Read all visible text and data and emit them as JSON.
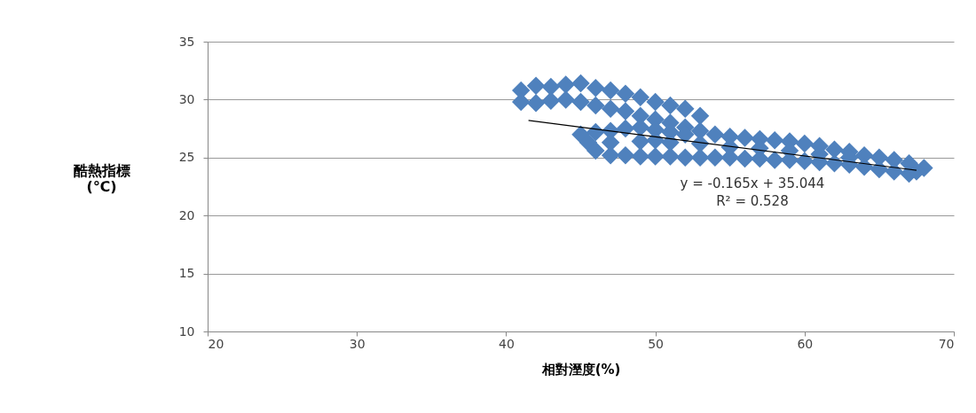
{
  "chart_data": {
    "type": "scatter",
    "xlabel": "相對溼度(%)",
    "ylabel": "酷熱指標\n(℃)",
    "xlim": [
      20,
      70
    ],
    "xticks": [
      20,
      30,
      40,
      50,
      60,
      70
    ],
    "ylim": [
      10,
      35
    ],
    "yticks": [
      10,
      15,
      20,
      25,
      30,
      35
    ],
    "grid": "y",
    "series": [
      {
        "color": "#4f81bd",
        "marker": "diamond",
        "x": [
          41,
          42,
          43,
          44,
          45,
          46,
          47,
          48,
          49,
          50,
          51,
          52,
          53,
          41,
          42,
          43,
          44,
          45,
          46,
          47,
          48,
          49,
          50,
          51,
          52,
          52,
          53,
          54,
          55,
          56,
          57,
          58,
          59,
          60,
          61,
          62,
          63,
          64,
          65,
          66,
          67,
          68,
          45,
          46,
          47,
          48,
          49,
          50,
          51,
          45.5,
          46,
          47,
          48,
          49,
          50,
          51,
          52,
          53,
          54,
          55,
          56,
          57,
          58,
          59,
          60,
          61,
          62,
          63,
          64,
          65,
          66,
          67,
          67.5,
          47,
          49,
          50,
          51,
          53,
          55,
          57,
          59,
          61,
          63
        ],
        "values": [
          30.8,
          31.2,
          31.1,
          31.3,
          31.4,
          31.0,
          30.8,
          30.5,
          30.2,
          29.8,
          29.5,
          29.2,
          28.6,
          29.8,
          29.7,
          29.9,
          30.0,
          29.8,
          29.5,
          29.2,
          29.0,
          28.6,
          28.3,
          28.0,
          27.6,
          27.0,
          27.3,
          27.0,
          26.8,
          26.7,
          26.6,
          26.5,
          26.4,
          26.2,
          26.0,
          25.7,
          25.5,
          25.2,
          25.0,
          24.8,
          24.5,
          24.1,
          27.0,
          27.2,
          27.3,
          27.5,
          27.6,
          27.4,
          27.2,
          26.3,
          25.6,
          25.2,
          25.2,
          25.1,
          25.1,
          25.1,
          25.0,
          25.0,
          25.0,
          25.0,
          24.9,
          24.9,
          24.8,
          24.8,
          24.7,
          24.6,
          24.5,
          24.4,
          24.2,
          24.0,
          23.8,
          23.6,
          23.8,
          26.3,
          26.4,
          26.5,
          26.3,
          26.2,
          25.9,
          25.8,
          25.6,
          25.3,
          25.0
        ]
      },
      {
        "type": "line",
        "marker": "none",
        "color": "#000000",
        "x": [
          41.5,
          67.5
        ],
        "values": [
          28.2,
          23.9
        ]
      }
    ],
    "annotations": [
      "y = -0.165x + 35.044",
      "R² = 0.528"
    ]
  }
}
